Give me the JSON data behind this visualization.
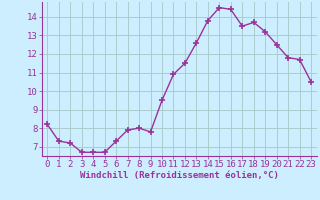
{
  "xlabel": "Windchill (Refroidissement éolien,°C)",
  "x": [
    0,
    1,
    2,
    3,
    4,
    5,
    6,
    7,
    8,
    9,
    10,
    11,
    12,
    13,
    14,
    15,
    16,
    17,
    18,
    19,
    20,
    21,
    22,
    23
  ],
  "y": [
    8.2,
    7.3,
    7.2,
    6.7,
    6.7,
    6.7,
    7.3,
    7.9,
    8.0,
    7.8,
    9.5,
    10.9,
    11.5,
    12.6,
    13.8,
    14.5,
    14.4,
    13.5,
    13.7,
    13.2,
    12.5,
    11.8,
    11.7,
    10.5
  ],
  "line_color": "#993399",
  "marker": "+",
  "marker_size": 4,
  "marker_linewidth": 1.2,
  "bg_color": "#cceeff",
  "grid_color": "#aacccc",
  "spine_color": "#993399",
  "tick_color": "#993399",
  "ylim": [
    6.5,
    14.8
  ],
  "yticks": [
    7,
    8,
    9,
    10,
    11,
    12,
    13,
    14
  ],
  "xlim": [
    -0.5,
    23.5
  ],
  "xticks": [
    0,
    1,
    2,
    3,
    4,
    5,
    6,
    7,
    8,
    9,
    10,
    11,
    12,
    13,
    14,
    15,
    16,
    17,
    18,
    19,
    20,
    21,
    22,
    23
  ],
  "xlabel_fontsize": 6.5,
  "tick_fontsize": 6.5,
  "line_width": 1.0
}
